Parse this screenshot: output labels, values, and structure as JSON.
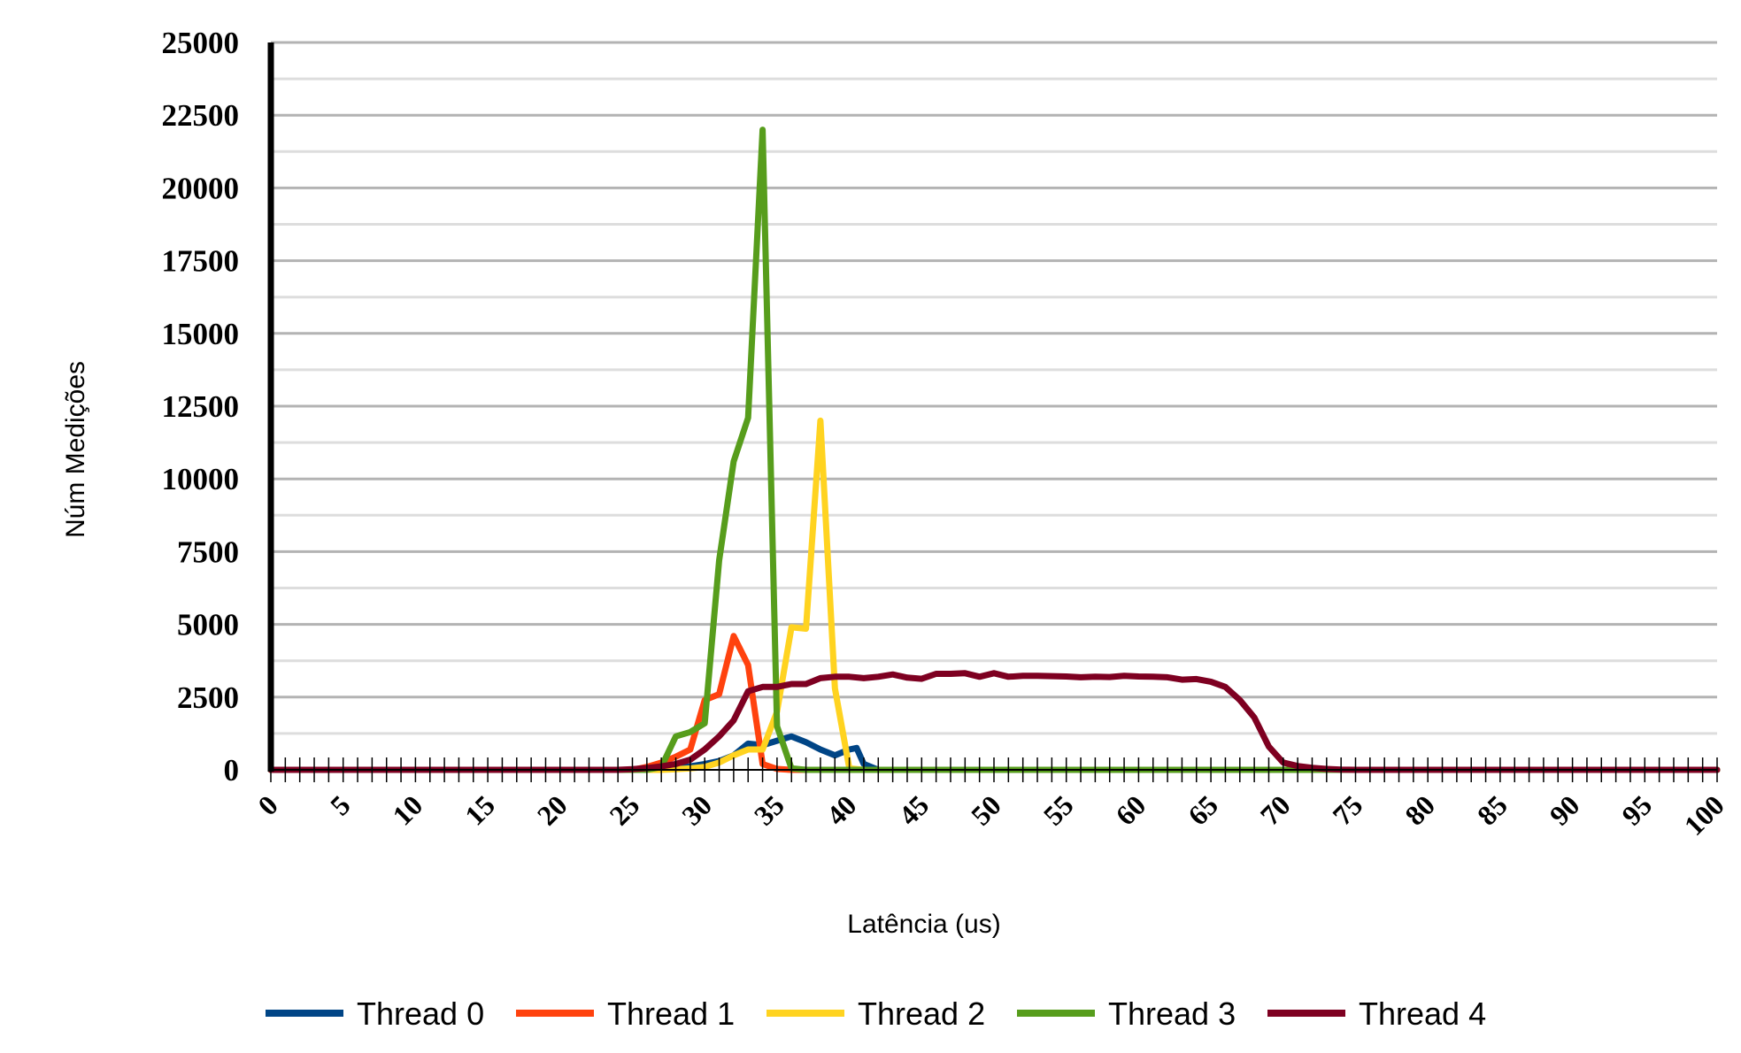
{
  "chart_data": {
    "type": "line",
    "xlabel": "Latência (us)",
    "ylabel": "Núm Medições",
    "xlim": [
      0,
      100
    ],
    "ylim": [
      0,
      25000
    ],
    "x_ticks": [
      0,
      5,
      10,
      15,
      20,
      25,
      30,
      35,
      40,
      45,
      50,
      55,
      60,
      65,
      70,
      75,
      80,
      85,
      90,
      95,
      100
    ],
    "y_ticks": [
      0,
      2500,
      5000,
      7500,
      10000,
      12500,
      15000,
      17500,
      20000,
      22500,
      25000
    ],
    "legend_position": "bottom",
    "grid": true,
    "series": [
      {
        "name": "Thread 0",
        "color": "#004586",
        "points": [
          [
            0,
            0
          ],
          [
            25,
            0
          ],
          [
            27,
            40
          ],
          [
            28,
            80
          ],
          [
            29,
            120
          ],
          [
            30,
            200
          ],
          [
            31,
            300
          ],
          [
            32,
            500
          ],
          [
            33,
            900
          ],
          [
            34,
            850
          ],
          [
            35,
            1000
          ],
          [
            36,
            1150
          ],
          [
            37,
            950
          ],
          [
            38,
            700
          ],
          [
            39,
            500
          ],
          [
            40,
            700
          ],
          [
            40.5,
            750
          ],
          [
            41,
            200
          ],
          [
            42,
            0
          ],
          [
            100,
            0
          ]
        ]
      },
      {
        "name": "Thread 1",
        "color": "#ff420e",
        "points": [
          [
            0,
            0
          ],
          [
            25,
            0
          ],
          [
            26,
            100
          ],
          [
            27,
            250
          ],
          [
            28,
            450
          ],
          [
            29,
            700
          ],
          [
            30,
            2400
          ],
          [
            31,
            2600
          ],
          [
            32,
            4600
          ],
          [
            33,
            3600
          ],
          [
            34,
            200
          ],
          [
            35,
            30
          ],
          [
            36,
            0
          ],
          [
            100,
            0
          ]
        ]
      },
      {
        "name": "Thread 2",
        "color": "#ffd320",
        "points": [
          [
            0,
            0
          ],
          [
            27,
            0
          ],
          [
            28,
            20
          ],
          [
            29,
            50
          ],
          [
            30,
            100
          ],
          [
            31,
            250
          ],
          [
            32,
            500
          ],
          [
            33,
            700
          ],
          [
            34,
            700
          ],
          [
            35,
            2000
          ],
          [
            36,
            4900
          ],
          [
            37,
            4850
          ],
          [
            38,
            12000
          ],
          [
            39,
            2800
          ],
          [
            40,
            50
          ],
          [
            41,
            0
          ],
          [
            100,
            0
          ]
        ]
      },
      {
        "name": "Thread 3",
        "color": "#579d1c",
        "points": [
          [
            0,
            0
          ],
          [
            26,
            0
          ],
          [
            27,
            100
          ],
          [
            28,
            1150
          ],
          [
            29,
            1300
          ],
          [
            30,
            1600
          ],
          [
            31,
            7200
          ],
          [
            32,
            10600
          ],
          [
            33,
            12100
          ],
          [
            34,
            22000
          ],
          [
            35,
            1500
          ],
          [
            36,
            50
          ],
          [
            37,
            0
          ],
          [
            100,
            0
          ]
        ]
      },
      {
        "name": "Thread 4",
        "color": "#7e0021",
        "points": [
          [
            0,
            0
          ],
          [
            24,
            0
          ],
          [
            25,
            20
          ],
          [
            26,
            60
          ],
          [
            27,
            120
          ],
          [
            28,
            200
          ],
          [
            29,
            350
          ],
          [
            30,
            700
          ],
          [
            31,
            1150
          ],
          [
            32,
            1700
          ],
          [
            33,
            2700
          ],
          [
            34,
            2850
          ],
          [
            35,
            2850
          ],
          [
            36,
            2950
          ],
          [
            37,
            2950
          ],
          [
            38,
            3150
          ],
          [
            39,
            3200
          ],
          [
            40,
            3200
          ],
          [
            41,
            3150
          ],
          [
            42,
            3200
          ],
          [
            43,
            3280
          ],
          [
            44,
            3170
          ],
          [
            45,
            3130
          ],
          [
            46,
            3300
          ],
          [
            47,
            3300
          ],
          [
            48,
            3320
          ],
          [
            49,
            3200
          ],
          [
            50,
            3320
          ],
          [
            51,
            3200
          ],
          [
            52,
            3230
          ],
          [
            53,
            3230
          ],
          [
            54,
            3220
          ],
          [
            55,
            3210
          ],
          [
            56,
            3180
          ],
          [
            57,
            3200
          ],
          [
            58,
            3190
          ],
          [
            59,
            3230
          ],
          [
            60,
            3210
          ],
          [
            61,
            3200
          ],
          [
            62,
            3180
          ],
          [
            63,
            3100
          ],
          [
            64,
            3120
          ],
          [
            65,
            3030
          ],
          [
            66,
            2850
          ],
          [
            67,
            2400
          ],
          [
            68,
            1800
          ],
          [
            69,
            800
          ],
          [
            70,
            250
          ],
          [
            71,
            130
          ],
          [
            72,
            70
          ],
          [
            73,
            30
          ],
          [
            74,
            10
          ],
          [
            75,
            0
          ],
          [
            100,
            0
          ]
        ]
      }
    ]
  }
}
